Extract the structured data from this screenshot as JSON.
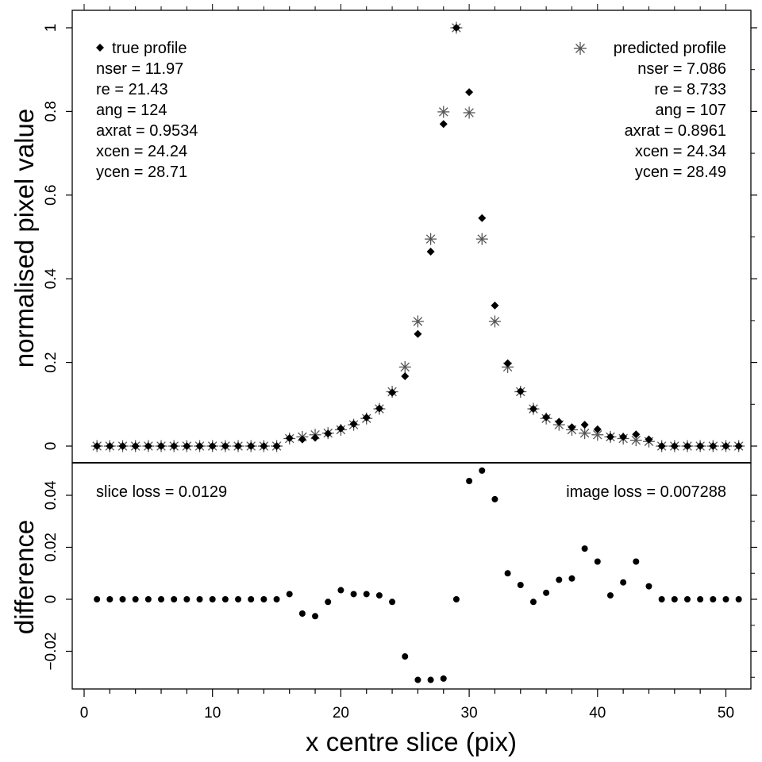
{
  "chart_data": [
    {
      "type": "scatter",
      "panel": "top",
      "xlabel": "",
      "ylabel": "normalised pixel value",
      "xlim": [
        1,
        51
      ],
      "ylim": [
        0,
        1
      ],
      "yticks": [
        "0",
        "0.2",
        "0.4",
        "0.6",
        "0.8",
        "1"
      ],
      "x": [
        1,
        2,
        3,
        4,
        5,
        6,
        7,
        8,
        9,
        10,
        11,
        12,
        13,
        14,
        15,
        16,
        17,
        18,
        19,
        20,
        21,
        22,
        23,
        24,
        25,
        26,
        27,
        28,
        29,
        30,
        31,
        32,
        33,
        34,
        35,
        36,
        37,
        38,
        39,
        40,
        41,
        42,
        43,
        44,
        45,
        46,
        47,
        48,
        49,
        50,
        51
      ],
      "series": [
        {
          "name": "true profile",
          "marker": "diamond",
          "color": "#000000",
          "values": [
            0,
            0,
            0,
            0,
            0,
            0,
            0,
            0,
            0,
            0,
            0,
            0,
            0,
            0,
            0,
            0.019,
            0.016,
            0.02,
            0.03,
            0.042,
            0.053,
            0.068,
            0.09,
            0.128,
            0.167,
            0.268,
            0.465,
            0.77,
            1.0,
            0.846,
            0.545,
            0.336,
            0.198,
            0.131,
            0.089,
            0.069,
            0.058,
            0.045,
            0.051,
            0.04,
            0.022,
            0.022,
            0.028,
            0.016,
            0,
            0,
            0,
            0,
            0,
            0,
            0
          ]
        },
        {
          "name": "predicted profile",
          "marker": "asterisk",
          "color": "#555555",
          "values": [
            0,
            0,
            0,
            0,
            0,
            0,
            0,
            0,
            0,
            0,
            0,
            0,
            0,
            0,
            0,
            0.018,
            0.022,
            0.027,
            0.031,
            0.039,
            0.051,
            0.066,
            0.089,
            0.13,
            0.189,
            0.298,
            0.495,
            0.799,
            1.0,
            0.797,
            0.495,
            0.298,
            0.189,
            0.13,
            0.089,
            0.066,
            0.051,
            0.039,
            0.031,
            0.027,
            0.022,
            0.018,
            0.014,
            0.011,
            0,
            0,
            0,
            0,
            0,
            0,
            0
          ]
        }
      ],
      "legend_left": {
        "title": "true profile",
        "lines": [
          "nser = 11.97",
          "re = 21.43",
          "ang = 124",
          "axrat = 0.9534",
          "xcen = 24.24",
          "ycen = 28.71"
        ]
      },
      "legend_right": {
        "title": "predicted profile",
        "lines": [
          "nser = 7.086",
          "re = 8.733",
          "ang = 107",
          "axrat = 0.8961",
          "xcen = 24.34",
          "ycen = 28.49"
        ]
      }
    },
    {
      "type": "scatter",
      "panel": "bottom",
      "xlabel": "x centre slice (pix)",
      "ylabel": "difference",
      "xlim": [
        1,
        51
      ],
      "ylim": [
        -0.03,
        0.05
      ],
      "xticks": [
        "0",
        "10",
        "20",
        "30",
        "40",
        "50"
      ],
      "yticks": [
        "−0.02",
        "0",
        "0.02",
        "0.04"
      ],
      "x": [
        1,
        2,
        3,
        4,
        5,
        6,
        7,
        8,
        9,
        10,
        11,
        12,
        13,
        14,
        15,
        16,
        17,
        18,
        19,
        20,
        21,
        22,
        23,
        24,
        25,
        26,
        27,
        28,
        29,
        30,
        31,
        32,
        33,
        34,
        35,
        36,
        37,
        38,
        39,
        40,
        41,
        42,
        43,
        44,
        45,
        46,
        47,
        48,
        49,
        50,
        51
      ],
      "series": [
        {
          "name": "",
          "marker": "dot",
          "color": "#000000",
          "values": [
            0,
            0,
            0,
            0,
            0,
            0,
            0,
            0,
            0,
            0,
            0,
            0,
            0,
            0,
            0,
            0.002,
            -0.0055,
            -0.0065,
            -0.001,
            0.0035,
            0.002,
            0.002,
            0.0015,
            -0.001,
            -0.022,
            -0.031,
            -0.031,
            -0.0305,
            0,
            0.0455,
            0.0495,
            0.0385,
            0.01,
            0.0055,
            -0.001,
            0.0025,
            0.0075,
            0.008,
            0.0195,
            0.0145,
            0.0015,
            0.0065,
            0.0145,
            0.005,
            0,
            0,
            0,
            0,
            0,
            0,
            0
          ]
        }
      ],
      "annotation_left": "slice loss = 0.0129",
      "annotation_right": "image loss = 0.007288"
    }
  ]
}
